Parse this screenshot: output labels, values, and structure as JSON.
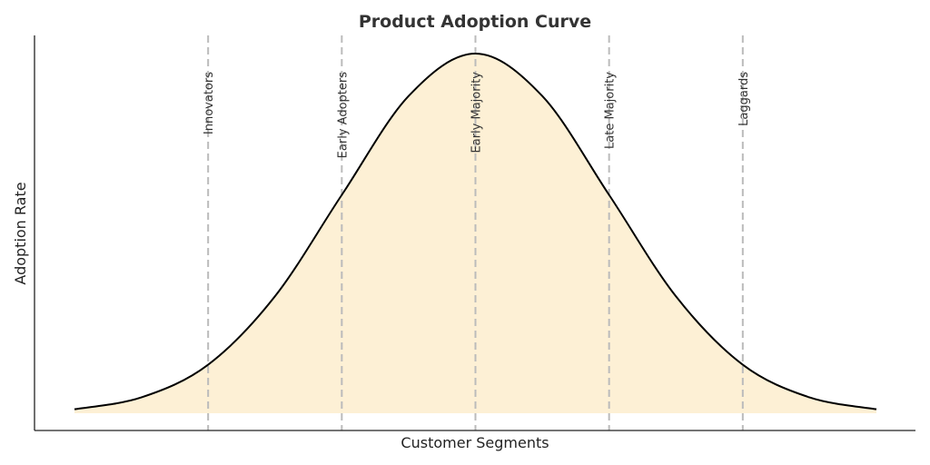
{
  "chart_data": {
    "type": "area",
    "title": "Product Adoption Curve",
    "xlabel": "Customer Segments",
    "ylabel": "Adoption Rate",
    "xlim": [
      -3,
      3
    ],
    "ylim": [
      0,
      1
    ],
    "grid": false,
    "legend": "none",
    "colors": {
      "curve": "#000000",
      "fill": "#fdf0d5",
      "segment_lines": "#bbbbbb",
      "axis": "#222222"
    },
    "series": [
      {
        "x": [
          -3.0,
          -2.5,
          -2.0,
          -1.5,
          -1.0,
          -0.5,
          0.0,
          0.5,
          1.0,
          1.5,
          2.0,
          2.5,
          3.0
        ],
        "y": [
          0.011,
          0.044,
          0.135,
          0.325,
          0.607,
          0.882,
          1.0,
          0.882,
          0.607,
          0.325,
          0.135,
          0.044,
          0.011
        ]
      }
    ],
    "segments": [
      {
        "label": "Innovators",
        "x": -2
      },
      {
        "label": "Early Adopters",
        "x": -1
      },
      {
        "label": "Early Majority",
        "x": 0
      },
      {
        "label": "Late Majority",
        "x": 1
      },
      {
        "label": "Laggards",
        "x": 2
      }
    ]
  }
}
